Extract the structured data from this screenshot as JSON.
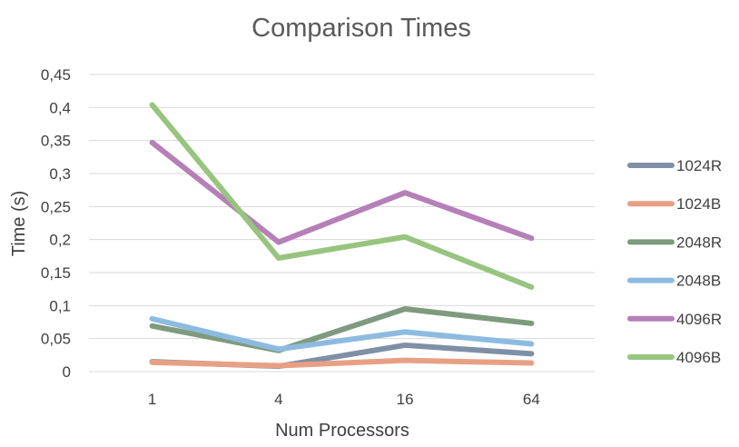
{
  "chart_data": {
    "type": "line",
    "title": "Comparison Times",
    "xlabel": "Num Processors",
    "ylabel": "Time (s)",
    "categories": [
      "1",
      "4",
      "16",
      "64"
    ],
    "yticks": [
      "0",
      "0,05",
      "0,1",
      "0,15",
      "0,2",
      "0,25",
      "0,3",
      "0,35",
      "0,4",
      "0,45"
    ],
    "ylim": [
      0,
      0.45
    ],
    "grid": true,
    "legend_position": "right",
    "series": [
      {
        "name": "1024R",
        "color": "#7f8fa6",
        "values": [
          0.015,
          0.008,
          0.04,
          0.027
        ]
      },
      {
        "name": "1024B",
        "color": "#e8a084",
        "values": [
          0.014,
          0.009,
          0.017,
          0.013
        ]
      },
      {
        "name": "2048R",
        "color": "#7f9a7e",
        "values": [
          0.069,
          0.032,
          0.095,
          0.073
        ]
      },
      {
        "name": "2048B",
        "color": "#8dbbe0",
        "values": [
          0.08,
          0.034,
          0.06,
          0.042
        ]
      },
      {
        "name": "4096R",
        "color": "#b57fb8",
        "values": [
          0.347,
          0.196,
          0.271,
          0.202
        ]
      },
      {
        "name": "4096B",
        "color": "#97c47f",
        "values": [
          0.404,
          0.172,
          0.204,
          0.128
        ]
      }
    ]
  }
}
